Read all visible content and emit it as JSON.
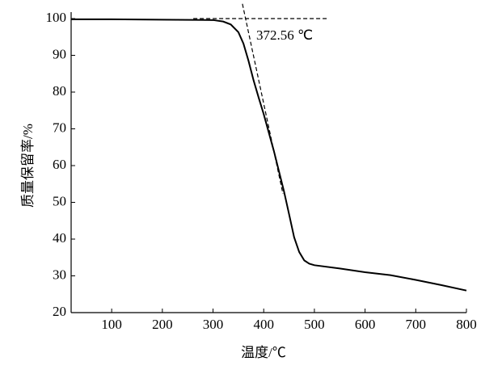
{
  "chart_data": {
    "type": "line",
    "xlabel": "温度/℃",
    "ylabel": "质量保留率/%",
    "xlim": [
      20,
      800
    ],
    "ylim": [
      20,
      100
    ],
    "xticks": [
      100,
      200,
      300,
      400,
      500,
      600,
      700,
      800
    ],
    "yticks": [
      20,
      30,
      40,
      50,
      60,
      70,
      80,
      90,
      100
    ],
    "series": [
      {
        "color": "#000000",
        "dash": false,
        "x": [
          20,
          100,
          200,
          300,
          320,
          335,
          350,
          360,
          370,
          380,
          390,
          400,
          410,
          420,
          430,
          440,
          450,
          460,
          470,
          480,
          490,
          500,
          550,
          600,
          650,
          700,
          750,
          800
        ],
        "values": [
          99.8,
          99.8,
          99.7,
          99.6,
          99.2,
          98.4,
          96.3,
          93.2,
          88.5,
          83.2,
          78.5,
          74,
          69,
          64,
          58.5,
          53,
          46.8,
          40.5,
          36.5,
          34.2,
          33.3,
          32.9,
          32,
          31,
          30.2,
          28.9,
          27.5,
          26
        ]
      },
      {
        "color": "#000000",
        "dash": true,
        "x": [
          261,
          526
        ],
        "values": [
          100,
          100
        ]
      },
      {
        "color": "#000000",
        "dash": true,
        "x": [
          358,
          438
        ],
        "values": [
          104,
          52.3
        ]
      }
    ],
    "annotations": [
      {
        "text": "372.56 ℃",
        "x": 372.56,
        "y": 100
      }
    ]
  }
}
